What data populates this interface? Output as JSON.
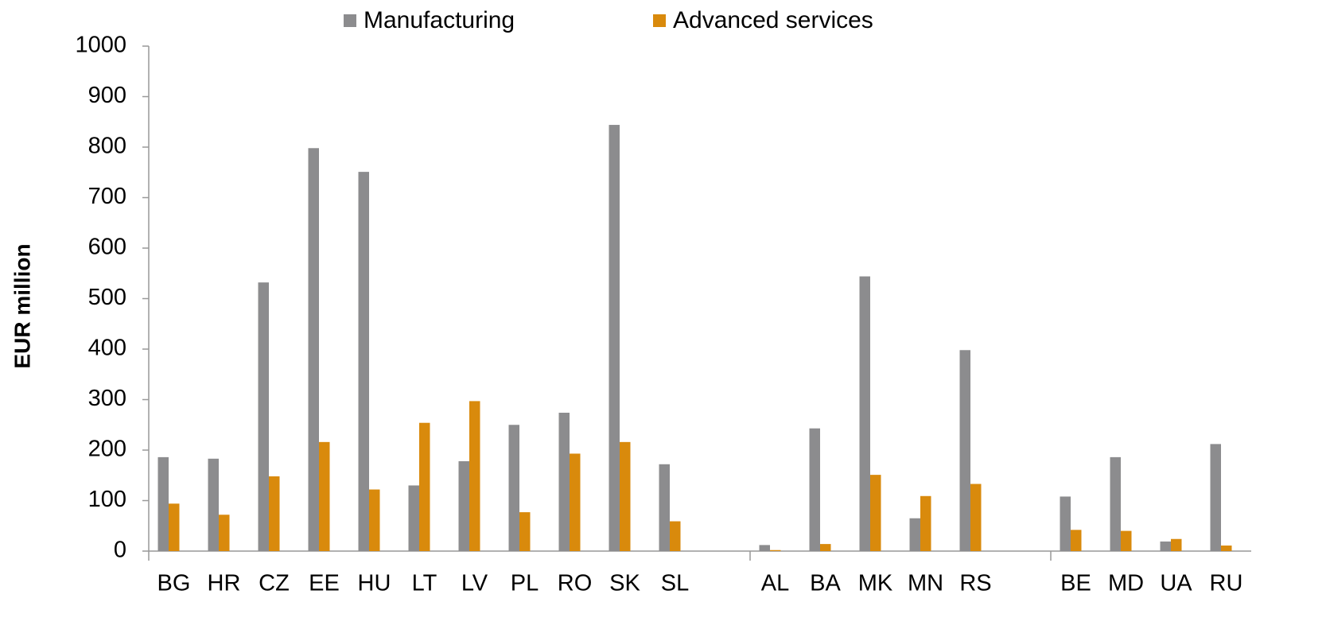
{
  "chart_data": {
    "type": "bar",
    "ylabel": "EUR million",
    "categories": [
      "BG",
      "HR",
      "CZ",
      "EE",
      "HU",
      "LT",
      "LV",
      "PL",
      "RO",
      "SK",
      "SL",
      null,
      "AL",
      "BA",
      "MK",
      "MN",
      "RS",
      null,
      "BE",
      "MD",
      "UA",
      "RU"
    ],
    "series": [
      {
        "name": "Manufacturing",
        "color": "#8c8c8e",
        "values": [
          186,
          183,
          532,
          798,
          751,
          130,
          178,
          250,
          274,
          844,
          172,
          null,
          12,
          243,
          544,
          65,
          398,
          null,
          108,
          186,
          19,
          212
        ]
      },
      {
        "name": "Advanced services",
        "color": "#d98a0c",
        "values": [
          94,
          72,
          148,
          216,
          122,
          254,
          297,
          77,
          193,
          216,
          59,
          null,
          2,
          14,
          151,
          109,
          133,
          null,
          42,
          40,
          24,
          11
        ]
      }
    ],
    "ylim": [
      0,
      1000
    ],
    "yticks": [
      0,
      100,
      200,
      300,
      400,
      500,
      600,
      700,
      800,
      900,
      1000
    ],
    "legend": "top"
  }
}
